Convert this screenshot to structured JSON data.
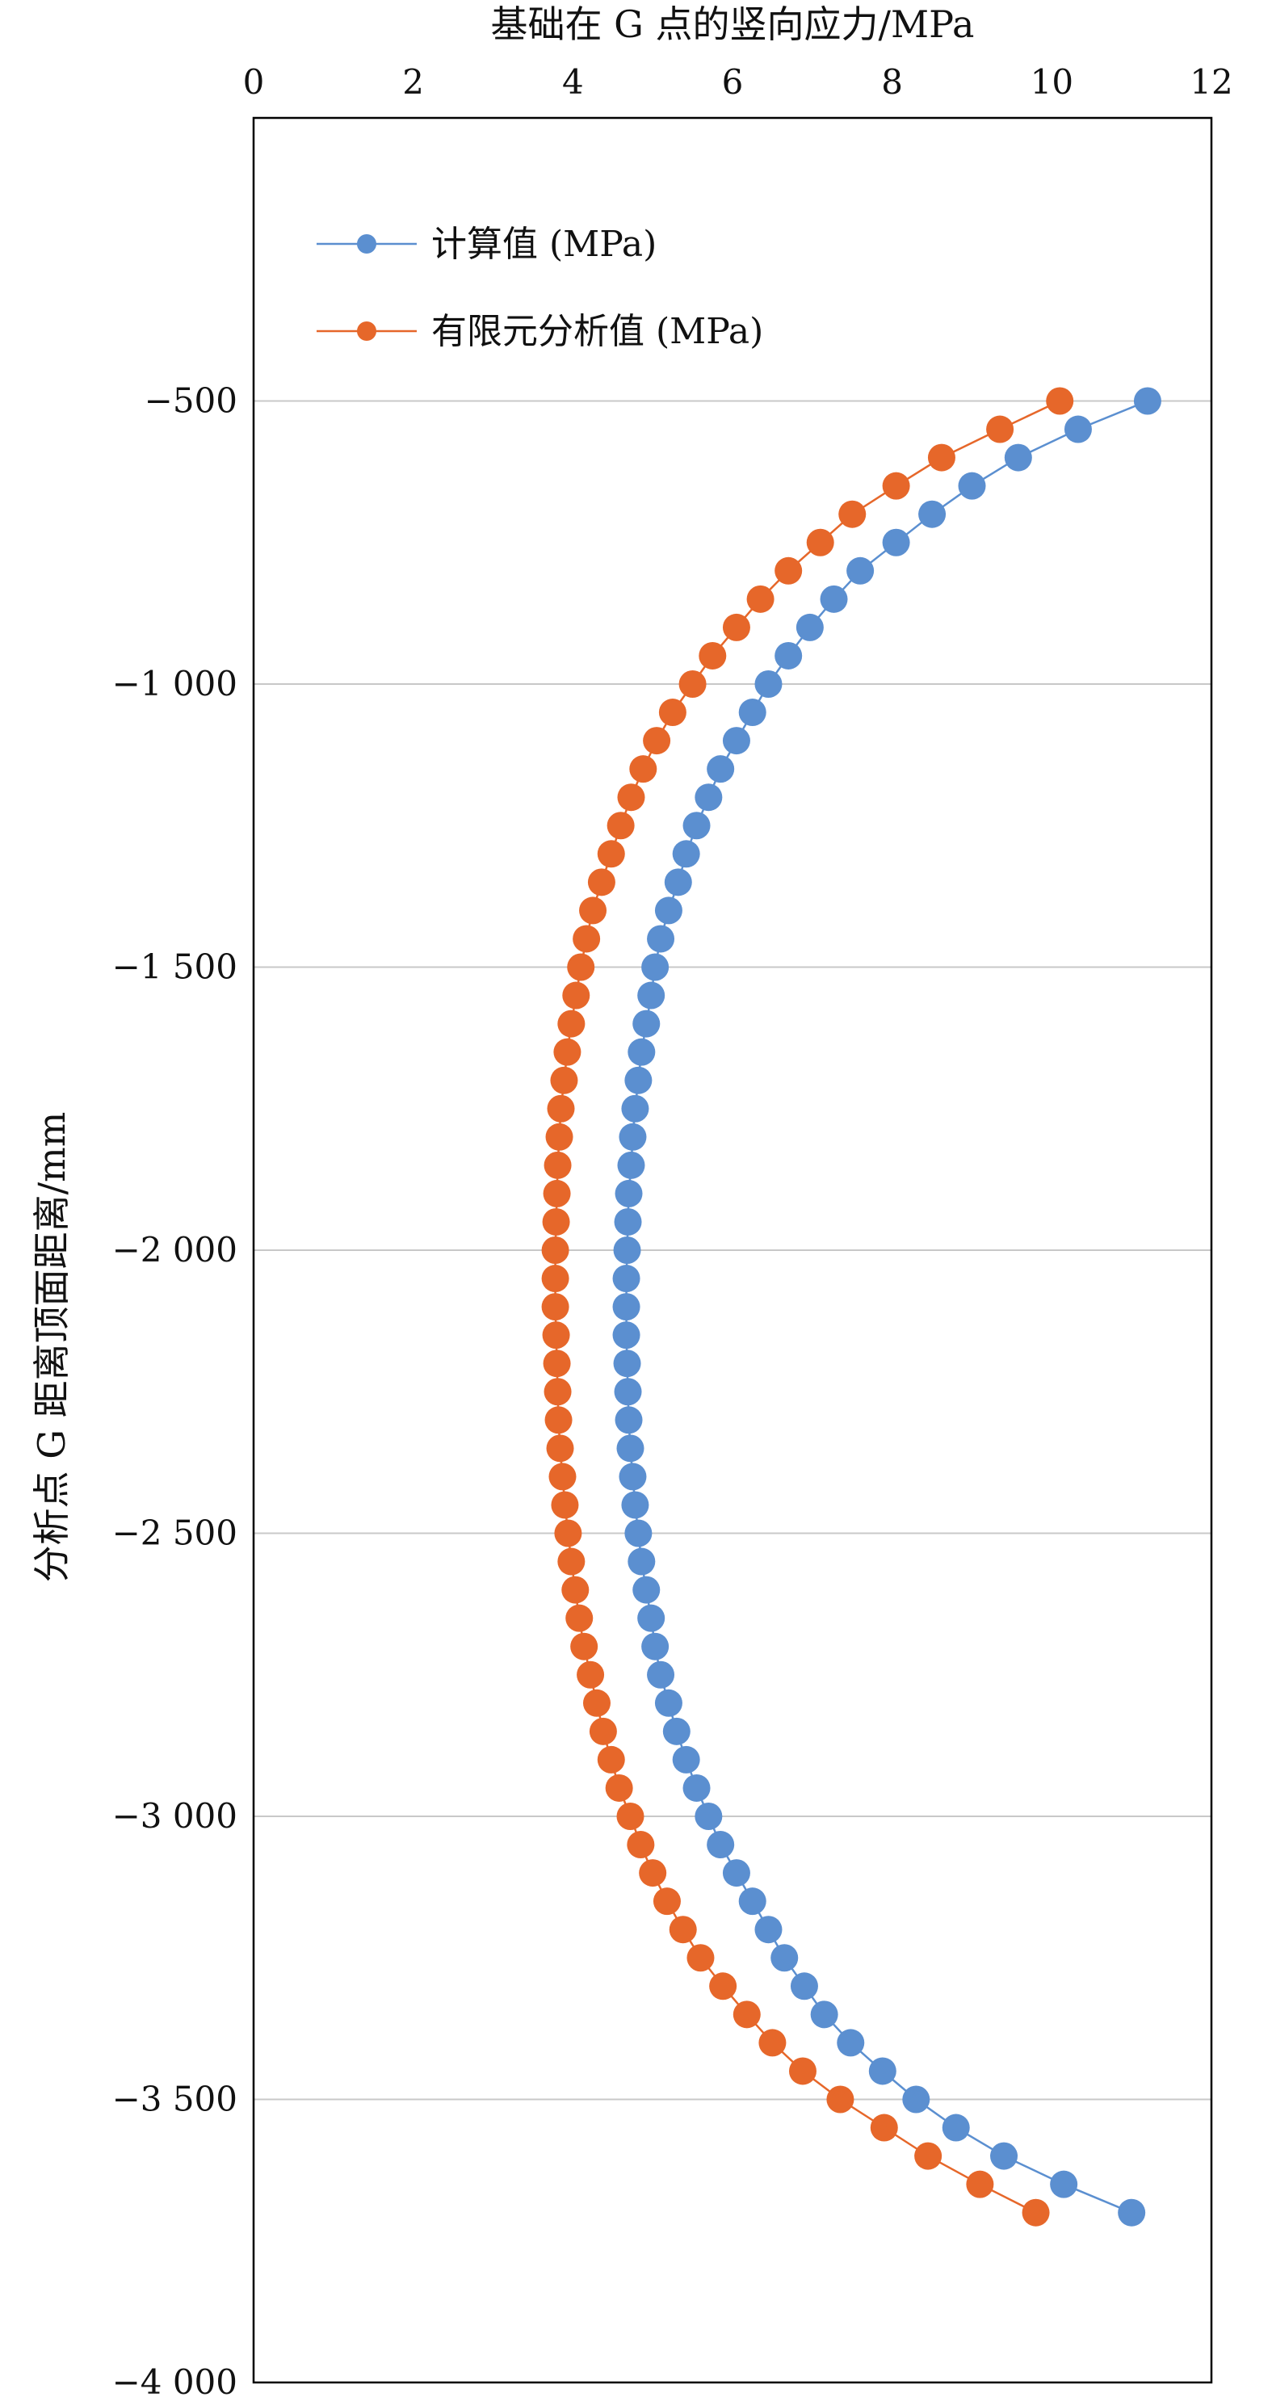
{
  "chart_data": {
    "type": "scatter",
    "xlabel": "基础在 G 点的竖向应力/MPa",
    "ylabel": "分析点 G 距离顶面距离/mm",
    "xlim": [
      0,
      12
    ],
    "ylim": [
      -4000,
      0
    ],
    "x_axis_position": "top",
    "x_ticks": [
      0,
      2,
      4,
      6,
      8,
      10,
      12
    ],
    "x_tick_labels": [
      "0",
      "2",
      "4",
      "6",
      "8",
      "10",
      "12"
    ],
    "y_ticks": [
      -500,
      -1000,
      -1500,
      -2000,
      -2500,
      -3000,
      -3500,
      -4000
    ],
    "y_tick_labels": [
      "−500",
      "−1 000",
      "−1 500",
      "−2 000",
      "−2 500",
      "−3 000",
      "−3 500",
      "−4 000"
    ],
    "grid": true,
    "legend_position": "top-left",
    "series": [
      {
        "name": "计算值 (MPa)",
        "color": "#5B8FD0",
        "y": [
          -500,
          -550,
          -600,
          -650,
          -700,
          -750,
          -800,
          -850,
          -900,
          -950,
          -1000,
          -1050,
          -1100,
          -1150,
          -1200,
          -1250,
          -1300,
          -1350,
          -1400,
          -1450,
          -1500,
          -1550,
          -1600,
          -1650,
          -1700,
          -1750,
          -1800,
          -1850,
          -1900,
          -1950,
          -2000,
          -2050,
          -2100,
          -2150,
          -2200,
          -2250,
          -2300,
          -2350,
          -2400,
          -2450,
          -2500,
          -2550,
          -2600,
          -2650,
          -2700,
          -2750,
          -2800,
          -2850,
          -2900,
          -2950,
          -3000,
          -3050,
          -3100,
          -3150,
          -3200,
          -3250,
          -3300,
          -3350,
          -3400,
          -3450,
          -3500,
          -3550,
          -3600,
          -3650,
          -3700
        ],
        "x": [
          11.2,
          10.33,
          9.58,
          9.0,
          8.5,
          8.05,
          7.6,
          7.27,
          6.97,
          6.7,
          6.45,
          6.25,
          6.05,
          5.85,
          5.7,
          5.55,
          5.42,
          5.32,
          5.2,
          5.1,
          5.03,
          4.98,
          4.92,
          4.86,
          4.82,
          4.78,
          4.75,
          4.73,
          4.7,
          4.69,
          4.68,
          4.67,
          4.67,
          4.67,
          4.68,
          4.69,
          4.7,
          4.72,
          4.75,
          4.78,
          4.82,
          4.86,
          4.92,
          4.98,
          5.03,
          5.1,
          5.2,
          5.3,
          5.42,
          5.55,
          5.7,
          5.85,
          6.05,
          6.25,
          6.45,
          6.65,
          6.9,
          7.15,
          7.48,
          7.88,
          8.3,
          8.8,
          9.4,
          10.15,
          11.0
        ]
      },
      {
        "name": "有限元分析值 (MPa)",
        "color": "#E6672A",
        "y": [
          -500,
          -550,
          -600,
          -650,
          -700,
          -750,
          -800,
          -850,
          -900,
          -950,
          -1000,
          -1050,
          -1100,
          -1150,
          -1200,
          -1250,
          -1300,
          -1350,
          -1400,
          -1450,
          -1500,
          -1550,
          -1600,
          -1650,
          -1700,
          -1750,
          -1800,
          -1850,
          -1900,
          -1950,
          -2000,
          -2050,
          -2100,
          -2150,
          -2200,
          -2250,
          -2300,
          -2350,
          -2400,
          -2450,
          -2500,
          -2550,
          -2600,
          -2650,
          -2700,
          -2750,
          -2800,
          -2850,
          -2900,
          -2950,
          -3000,
          -3050,
          -3100,
          -3150,
          -3200,
          -3250,
          -3300,
          -3350,
          -3400,
          -3450,
          -3500,
          -3550,
          -3600,
          -3650,
          -3700
        ],
        "x": [
          10.1,
          9.35,
          8.62,
          8.05,
          7.5,
          7.1,
          6.7,
          6.35,
          6.05,
          5.75,
          5.5,
          5.25,
          5.05,
          4.88,
          4.73,
          4.6,
          4.48,
          4.36,
          4.25,
          4.17,
          4.1,
          4.04,
          3.98,
          3.93,
          3.89,
          3.85,
          3.83,
          3.81,
          3.8,
          3.79,
          3.78,
          3.78,
          3.78,
          3.79,
          3.8,
          3.81,
          3.82,
          3.84,
          3.87,
          3.9,
          3.94,
          3.98,
          4.03,
          4.08,
          4.14,
          4.22,
          4.3,
          4.38,
          4.48,
          4.58,
          4.72,
          4.85,
          5.0,
          5.18,
          5.38,
          5.6,
          5.88,
          6.18,
          6.5,
          6.88,
          7.35,
          7.9,
          8.45,
          9.1,
          9.8
        ]
      }
    ]
  }
}
